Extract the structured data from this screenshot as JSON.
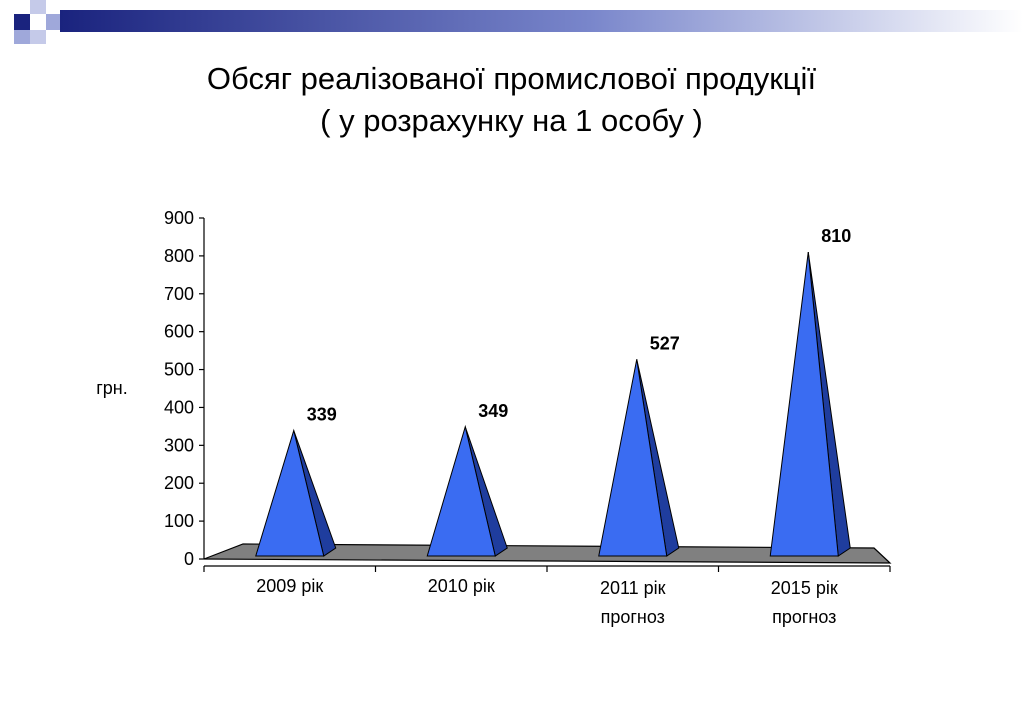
{
  "slide": {
    "title_line1": "Обсяг реалізованої промислової продукції",
    "title_line2": "( у розрахунку на 1 особу )"
  },
  "colors": {
    "pyramid_front": "#3a6cf2",
    "pyramid_side": "#1f3d9e",
    "floor": "#808080",
    "accent_dark": "#1a237e",
    "accent_light": "#9fa8da"
  },
  "chart_data": {
    "type": "bar",
    "bar_shape": "3d-pyramid",
    "title": "",
    "ylabel": "грн.",
    "xlabel": "",
    "ylim": [
      0,
      900
    ],
    "yticks": [
      "0",
      "100",
      "200",
      "300",
      "400",
      "500",
      "600",
      "700",
      "800",
      "900"
    ],
    "categories": [
      {
        "line1": "2009 рік",
        "line2": ""
      },
      {
        "line1": "2010 рік",
        "line2": ""
      },
      {
        "line1": "2011 рік",
        "line2": "прогноз"
      },
      {
        "line1": "2015 рік",
        "line2": "прогноз"
      }
    ],
    "values": [
      339,
      349,
      527,
      810
    ],
    "data_labels": [
      "339",
      "349",
      "527",
      "810"
    ],
    "grid": false,
    "legend": "none"
  }
}
